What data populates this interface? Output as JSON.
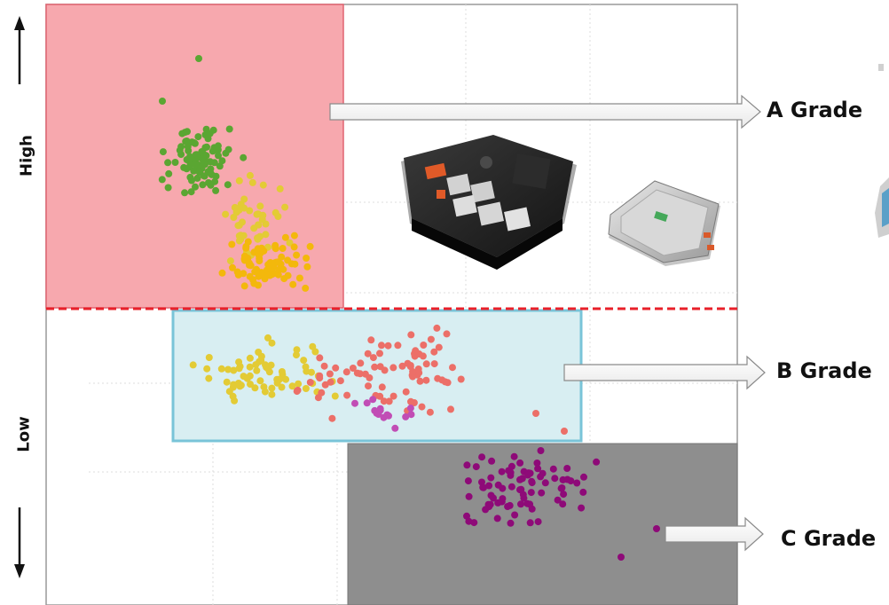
{
  "axis": {
    "high_label": "High",
    "low_label": "Low"
  },
  "grades": {
    "a_label": "A Grade",
    "b_label": "B Grade",
    "c_label": "C Grade"
  },
  "colors": {
    "grade_a_zone": "#f7a8ae",
    "grade_a_border": "#e06470",
    "grade_b_zone": "#d8eef2",
    "grade_b_border": "#79c4d8",
    "grade_c_zone": "#8e8e8e",
    "divider": "#e8202a",
    "dot_green": "#5aa632",
    "dot_yellow": "#e3cb35",
    "dot_gold": "#f3b80c",
    "dot_salmon": "#ec6f68",
    "dot_orchid": "#c14db5",
    "dot_purple": "#8e0a78"
  },
  "icons": {
    "battery_pack": "battery-pack-image",
    "control_module": "battery-control-module-image",
    "device_edge": "device-thumbnail-edge"
  }
}
